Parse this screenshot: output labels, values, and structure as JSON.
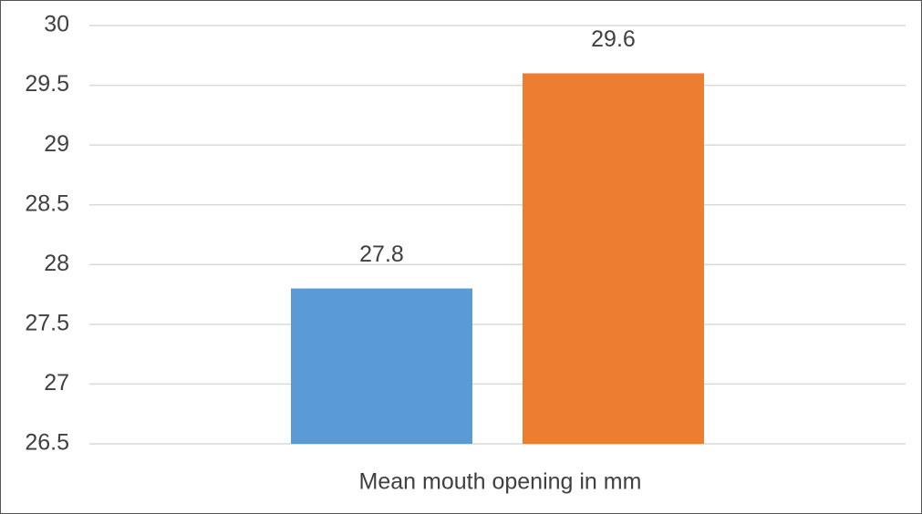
{
  "chart_data": {
    "type": "bar",
    "categories": [
      "Mean mouth opening in mm"
    ],
    "series": [
      {
        "color": "#5b9bd5",
        "values": [
          27.8
        ]
      },
      {
        "color": "#ed7d31",
        "values": [
          29.6
        ]
      }
    ],
    "ylim": [
      26.5,
      30
    ],
    "yticks": [
      26.5,
      27,
      27.5,
      28,
      28.5,
      29,
      29.5,
      30
    ],
    "grid": true
  }
}
